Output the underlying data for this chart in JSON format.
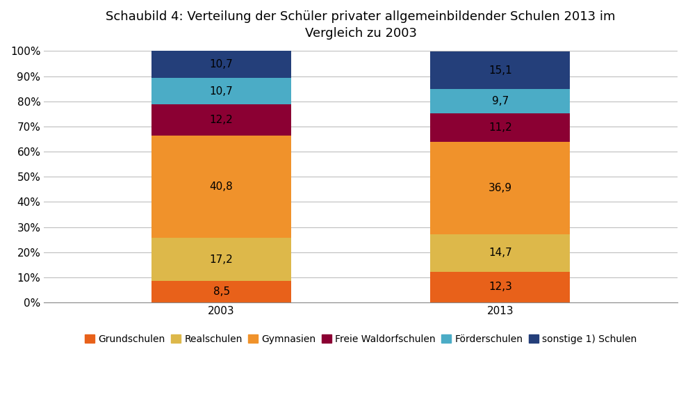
{
  "title": "Schaubild 4: Verteilung der Schüler privater allgemeinbildender Schulen 2013 im\nVergleich zu 2003",
  "years": [
    "2003",
    "2013"
  ],
  "categories": [
    "Grundschulen",
    "Realschulen",
    "Gymnasien",
    "Freie Waldorfschulen",
    "Förderschulen",
    "sonstige 1) Schulen"
  ],
  "values": {
    "2003": [
      8.5,
      17.2,
      40.8,
      12.2,
      10.7,
      10.7
    ],
    "2013": [
      12.3,
      14.7,
      36.9,
      11.2,
      9.7,
      15.1
    ]
  },
  "bar_colors": {
    "Grundschulen": "#E8611A",
    "Realschulen": "#DDB84A",
    "Gymnasien": "#F0922B",
    "Freie Waldorfschulen": "#8B0033",
    "Förderschulen": "#4BACC6",
    "sonstige 1) Schulen": "#243F7A"
  },
  "ylim": [
    0,
    100
  ],
  "yticks": [
    0,
    10,
    20,
    30,
    40,
    50,
    60,
    70,
    80,
    90,
    100
  ],
  "ytick_labels": [
    "0%",
    "10%",
    "20%",
    "30%",
    "40%",
    "50%",
    "60%",
    "70%",
    "80%",
    "90%",
    "100%"
  ],
  "background_color": "#FFFFFF",
  "grid_color": "#BEBEBE",
  "bar_width": 0.22,
  "x_positions": [
    0.28,
    0.72
  ],
  "xlim": [
    0,
    1
  ],
  "label_fontsize": 11,
  "title_fontsize": 13,
  "tick_fontsize": 11,
  "legend_fontsize": 10
}
